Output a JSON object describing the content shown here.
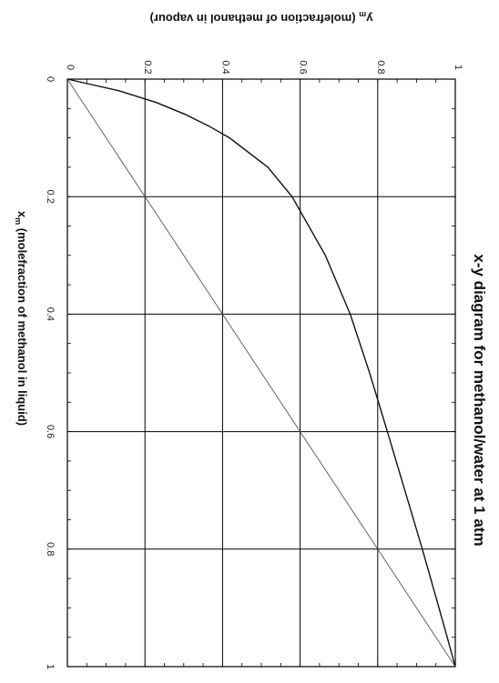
{
  "chart_data": {
    "type": "line",
    "title": "x-y diagram for methanol/water at 1 atm",
    "xlabel": {
      "main": "x",
      "sub": "m",
      "rest": " (molefraction of methanol in liquid)"
    },
    "ylabel": {
      "main": "y",
      "sub": "m",
      "rest": " (molefraction of methanol in vapour)"
    },
    "xlim": [
      0,
      1
    ],
    "ylim": [
      0,
      1
    ],
    "x_ticks": [
      "0",
      "0.2",
      "0.4",
      "0.6",
      "0.8",
      "1"
    ],
    "y_ticks": [
      "0",
      "0.2",
      "0.4",
      "0.6",
      "0.8",
      "1"
    ],
    "grid": true,
    "orientation": "rotated 90 degrees clockwise",
    "series": [
      {
        "kind": "equilibrium-curve",
        "x": [
          0,
          0.02,
          0.04,
          0.06,
          0.08,
          0.1,
          0.15,
          0.2,
          0.3,
          0.4,
          0.5,
          0.6,
          0.7,
          0.8,
          0.9,
          0.95,
          1.0
        ],
        "y": [
          0,
          0.134,
          0.23,
          0.304,
          0.365,
          0.418,
          0.517,
          0.579,
          0.665,
          0.729,
          0.779,
          0.825,
          0.87,
          0.915,
          0.958,
          0.979,
          1.0
        ]
      },
      {
        "kind": "diagonal",
        "x": [
          0,
          1
        ],
        "y": [
          0,
          1
        ]
      }
    ]
  }
}
